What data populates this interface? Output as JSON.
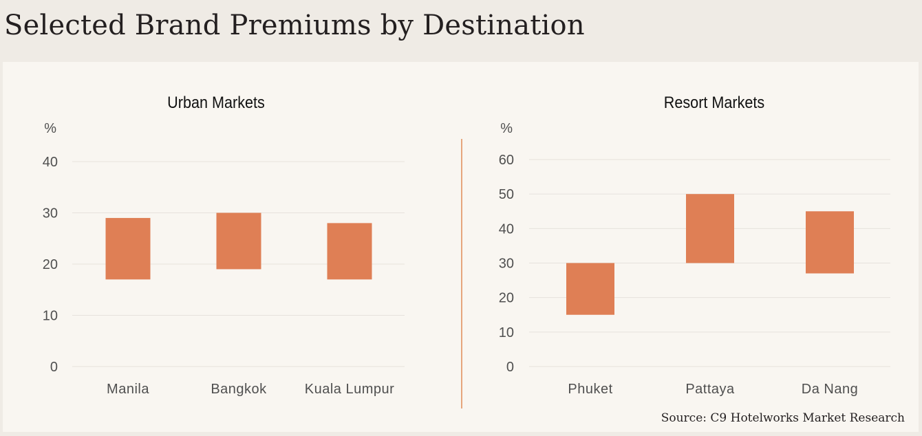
{
  "page": {
    "title": "Selected Brand Premiums by Destination",
    "source": "Source: C9 Hotelworks Market Research"
  },
  "colors": {
    "bar": "#df7f55",
    "divider": "#df8a55",
    "panel_background": "#f9f6f1",
    "page_background": "#efebe5",
    "gridline": "#e6e2dc"
  },
  "chart_data": [
    {
      "type": "bar",
      "subtype": "floating-range",
      "title": "Urban Markets",
      "ylabel": "%",
      "ylim": [
        0,
        40
      ],
      "yticks": [
        0,
        10,
        20,
        30,
        40
      ],
      "grid": true,
      "categories": [
        "Manila",
        "Bangkok",
        "Kuala Lumpur"
      ],
      "ranges": [
        [
          17,
          29
        ],
        [
          19,
          30
        ],
        [
          17,
          28
        ]
      ]
    },
    {
      "type": "bar",
      "subtype": "floating-range",
      "title": "Resort Markets",
      "ylabel": "%",
      "ylim": [
        0,
        60
      ],
      "yticks": [
        0,
        10,
        20,
        30,
        40,
        50,
        60
      ],
      "grid": true,
      "categories": [
        "Phuket",
        "Pattaya",
        "Da Nang"
      ],
      "ranges": [
        [
          15,
          30
        ],
        [
          30,
          50
        ],
        [
          27,
          45
        ]
      ]
    }
  ]
}
